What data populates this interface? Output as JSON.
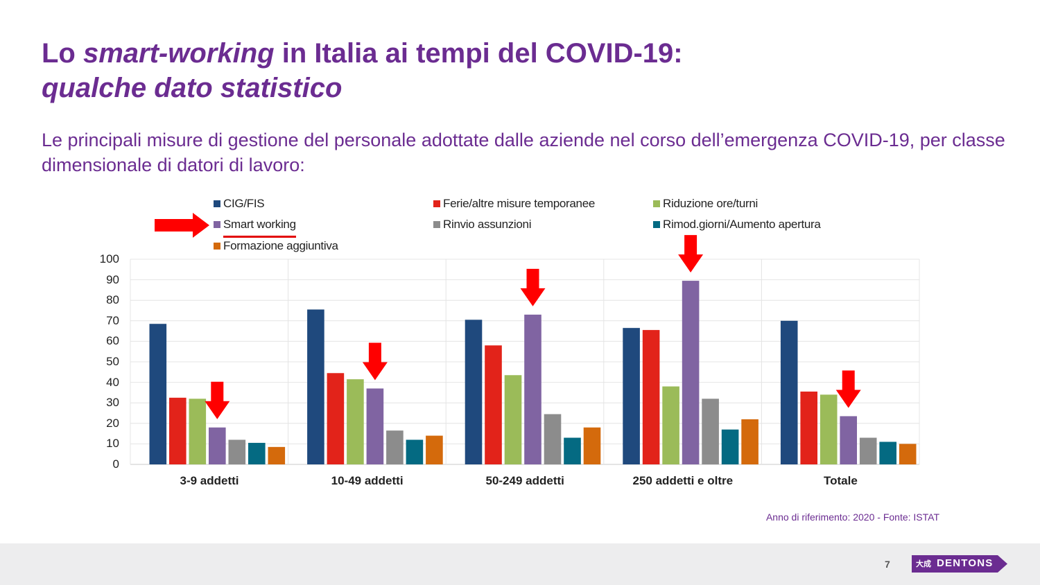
{
  "slide": {
    "title_part1": "Lo ",
    "title_italic": "smart-working",
    "title_part2": " in Italia ai tempi del COVID-19:",
    "title_line2": "qualche dato statistico",
    "subtitle": "Le principali misure di gestione del personale adottate dalle aziende nel corso dell’emergenza COVID-19, per classe dimensionale di datori di lavoro:",
    "source": "Anno di riferimento: 2020 - Fonte: ISTAT",
    "page_number": "7",
    "logo_text": "DENTONS",
    "logo_mark": "大成",
    "logo_color": "#6b2c91"
  },
  "chart_data": {
    "type": "bar",
    "categories": [
      "3-9 addetti",
      "10-49 addetti",
      "50-249 addetti",
      "250 addetti e oltre",
      "Totale"
    ],
    "series": [
      {
        "name": "CIG/FIS",
        "color": "#1f497d",
        "values": [
          68.5,
          75.5,
          70.5,
          66.5,
          70
        ]
      },
      {
        "name": "Ferie/altre misure temporanee",
        "color": "#e2231a",
        "values": [
          32.5,
          44.5,
          58,
          65.5,
          35.5
        ]
      },
      {
        "name": "Riduzione ore/turni",
        "color": "#9bbb59",
        "values": [
          32,
          41.5,
          43.5,
          38,
          34
        ]
      },
      {
        "name": "Smart working",
        "color": "#8064a2",
        "values": [
          18,
          37,
          73,
          89.5,
          23.5
        ]
      },
      {
        "name": "Rinvio assunzioni",
        "color": "#8c8c8c",
        "values": [
          12,
          16.5,
          24.5,
          32,
          13
        ]
      },
      {
        "name": "Rimod.giorni/Aumento apertura",
        "color": "#046a82",
        "values": [
          10.5,
          12,
          13,
          17,
          11
        ]
      },
      {
        "name": "Formazione aggiuntiva",
        "color": "#d46a0c",
        "values": [
          8.5,
          14,
          18,
          22,
          10
        ]
      }
    ],
    "ylim": [
      0,
      100
    ],
    "yticks": [
      0,
      10,
      20,
      30,
      40,
      50,
      60,
      70,
      80,
      90,
      100
    ],
    "grid": true,
    "legend_position": "top",
    "highlighted_series": "Smart working",
    "arrow_color": "#ff0000"
  }
}
